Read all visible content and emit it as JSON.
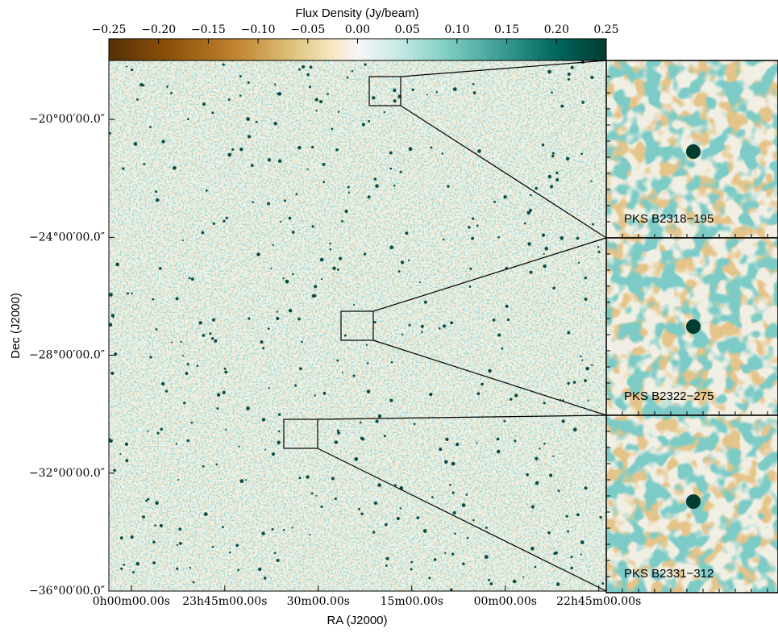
{
  "chart_data": {
    "type": "image",
    "colorbar_label": "Flux Density (Jy/beam)",
    "clim": [
      -0.25,
      0.25
    ],
    "cticks": [
      {
        "value": -0.25,
        "label": "−0.25"
      },
      {
        "value": -0.2,
        "label": "−0.20"
      },
      {
        "value": -0.15,
        "label": "−0.15"
      },
      {
        "value": -0.1,
        "label": "−0.10"
      },
      {
        "value": -0.05,
        "label": "−0.05"
      },
      {
        "value": 0,
        "label": "0.00"
      },
      {
        "value": 0.05,
        "label": "0.05"
      },
      {
        "value": 0.1,
        "label": "0.10"
      },
      {
        "value": 0.15,
        "label": "0.15"
      },
      {
        "value": 0.2,
        "label": "0.20"
      },
      {
        "value": 0.25,
        "label": "0.25"
      }
    ],
    "x_label": "RA (J2000)",
    "y_label": "Dec (J2000)",
    "xlim": [
      24.06,
      22.73
    ],
    "ylim": [
      -36,
      -18
    ],
    "xticks": [
      {
        "value": 24.0,
        "label": "0h00m00.00s"
      },
      {
        "value": 23.75,
        "label": "23h45m00.00s"
      },
      {
        "value": 23.5,
        "label": "30m00.00s"
      },
      {
        "value": 23.25,
        "label": "15m00.00s"
      },
      {
        "value": 23.0,
        "label": "00m00.00s"
      },
      {
        "value": 22.75,
        "label": "22h45m00.00s"
      }
    ],
    "yticks": [
      {
        "value": -20,
        "label": "−20°00′00.0″"
      },
      {
        "value": -24,
        "label": "−24°00′00.0″"
      },
      {
        "value": -28,
        "label": "−28°00′00.0″"
      },
      {
        "value": -32,
        "label": "−32°00′00.0″"
      },
      {
        "value": -36,
        "label": "−36°00′00.0″"
      }
    ],
    "insets": [
      "PKS B2318−195",
      "PKS B2322−275",
      "PKS B2331−312"
    ]
  }
}
